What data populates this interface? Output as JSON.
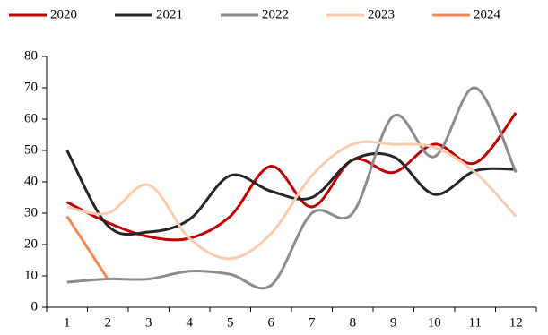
{
  "chart_data": {
    "type": "line",
    "smooth": true,
    "categories": [
      "1",
      "2",
      "3",
      "4",
      "5",
      "6",
      "7",
      "8",
      "9",
      "10",
      "11",
      "12"
    ],
    "series": [
      {
        "name": "2020",
        "color": "#c00000",
        "values": [
          33.5,
          27,
          22.5,
          22,
          29,
          45,
          32,
          47,
          43,
          52,
          46,
          62
        ]
      },
      {
        "name": "2021",
        "color": "#262626",
        "values": [
          50,
          26,
          24,
          28,
          42,
          37,
          35,
          47,
          48,
          36,
          43.5,
          44
        ]
      },
      {
        "name": "2022",
        "color": "#8c8c8c",
        "values": [
          8,
          9,
          9,
          11.5,
          10.5,
          7,
          30,
          30,
          61,
          48,
          70,
          43
        ]
      },
      {
        "name": "2023",
        "color": "#f9cbad",
        "values": [
          32,
          30,
          39,
          22,
          15.5,
          23.5,
          42,
          52,
          52,
          51,
          43,
          29
        ]
      },
      {
        "name": "2024",
        "color": "#f4875a",
        "values": [
          29,
          9,
          null,
          null,
          null,
          null,
          null,
          null,
          null,
          null,
          null,
          null
        ]
      }
    ],
    "ylim": [
      0,
      80
    ],
    "yticks": [
      0,
      10,
      20,
      30,
      40,
      50,
      60,
      70,
      80
    ],
    "grid": false,
    "legend": "top"
  }
}
